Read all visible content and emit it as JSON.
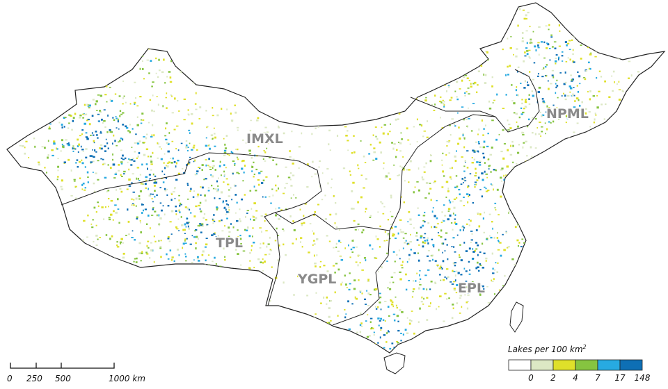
{
  "regions": [
    {
      "id": "imxl",
      "label": "IMXL"
    },
    {
      "id": "npml",
      "label": "NPML"
    },
    {
      "id": "tpl",
      "label": "TPL"
    },
    {
      "id": "ygpl",
      "label": "YGPL"
    },
    {
      "id": "epl",
      "label": "EPL"
    }
  ],
  "legend": {
    "title": "Lakes per 100 km",
    "title_superscript": "2",
    "classes": [
      {
        "color": "#ffffff"
      },
      {
        "color": "#dce8c4"
      },
      {
        "color": "#dfe02a"
      },
      {
        "color": "#86c440"
      },
      {
        "color": "#27aae1"
      },
      {
        "color": "#0e6fb5"
      }
    ],
    "breaks": [
      "0",
      "2",
      "4",
      "7",
      "17",
      "148"
    ]
  },
  "scale_bar": {
    "ticks": [
      "0",
      "250",
      "500",
      "1000 km"
    ]
  }
}
